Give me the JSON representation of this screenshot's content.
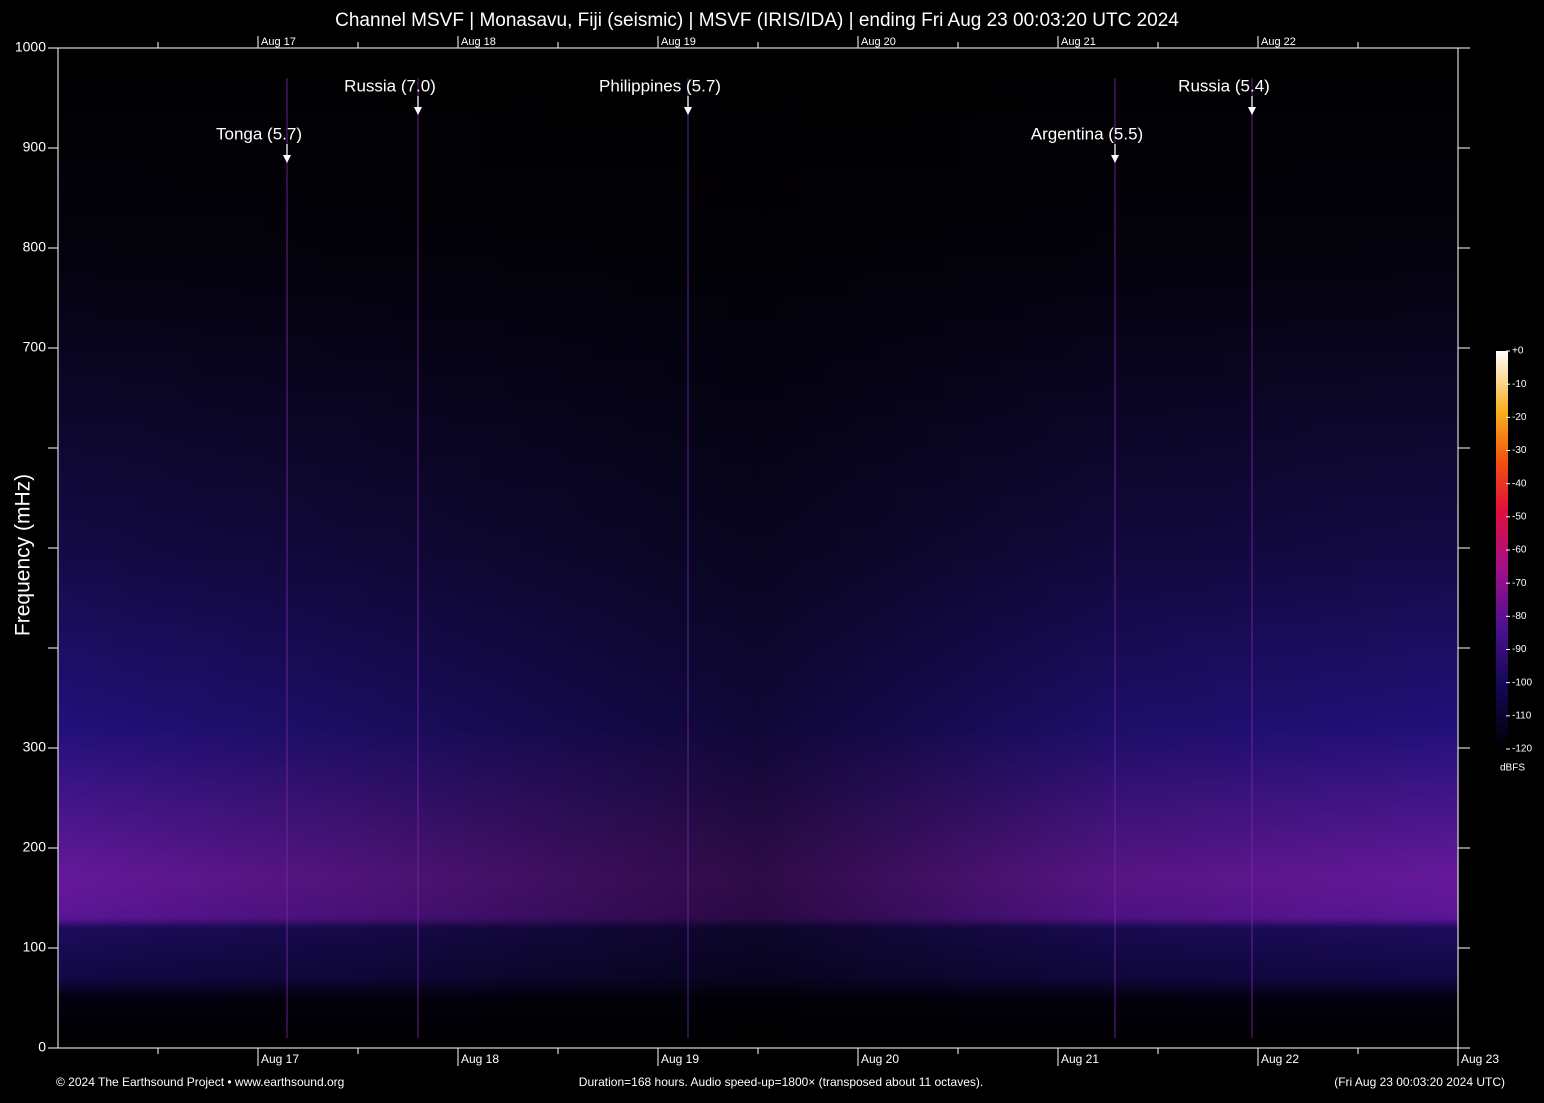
{
  "chart_data": {
    "type": "spectrogram",
    "title": "Channel MSVF | Monasavu, Fiji (seismic) | MSVF (IRIS/IDA) | ending Fri Aug 23 00:03:20 UTC 2024",
    "y_label": "Frequency (mHz)",
    "ylim": [
      0,
      1000
    ],
    "yticks": [
      0,
      100,
      200,
      300,
      {
        "value": 400,
        "label": null
      },
      {
        "value": 500,
        "label": null
      },
      {
        "value": 600,
        "label": null
      },
      700,
      800,
      900,
      1000
    ],
    "xlim": [
      0,
      7
    ],
    "xticks": [
      {
        "value": 1,
        "label": "Aug 17"
      },
      {
        "value": 2,
        "label": "Aug 18"
      },
      {
        "value": 3,
        "label": "Aug 19"
      },
      {
        "value": 4,
        "label": "Aug 20"
      },
      {
        "value": 5,
        "label": "Aug 21"
      },
      {
        "value": 6,
        "label": "Aug 22"
      },
      {
        "value": 7,
        "label": "Aug 23"
      }
    ],
    "events": [
      {
        "label": "Tonga (5.7)",
        "x": 1.145
      },
      {
        "label": "Russia (7.0)",
        "x": 1.8
      },
      {
        "label": "Philippines (5.7)",
        "x": 3.15
      },
      {
        "label": "Argentina (5.5)",
        "x": 5.285
      },
      {
        "label": "Russia (5.4)",
        "x": 5.97
      }
    ],
    "colorbar": {
      "label": "dBFS",
      "lim": [
        -120,
        0
      ],
      "ticks": [
        {
          "value": 0,
          "label": "+0"
        },
        -10,
        -20,
        -30,
        -40,
        -50,
        -60,
        -70,
        -80,
        -90,
        -100,
        -110,
        -120
      ]
    },
    "footer_left": "© 2024 The Earthsound Project • www.earthsound.org",
    "footer_center": "Duration=168 hours. Audio speed-up=1800× (transposed about 11 octaves).",
    "footer_right": "(Fri Aug 23 00:03:20 2024 UTC)"
  }
}
